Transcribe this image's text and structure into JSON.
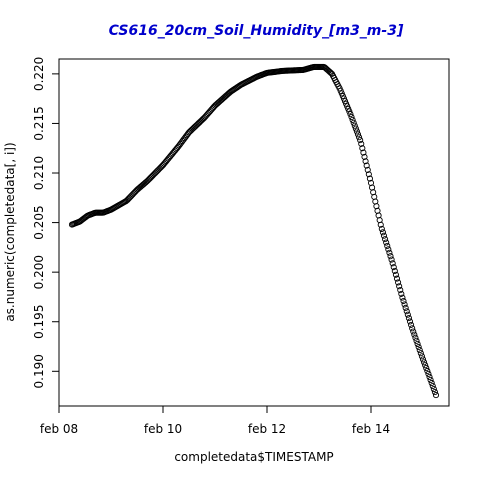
{
  "chart_data": {
    "type": "scatter",
    "title": "CS616_20cm_Soil_Humidity_[m3_m-3]",
    "title_color": "#0000cc",
    "xlabel": "completedata$TIMESTAMP",
    "ylabel": "as.numeric(completedata[, i])",
    "x_unit": "days (Feb, day-of-month)",
    "xlim": [
      8.0,
      15.5
    ],
    "ylim": [
      0.1865,
      0.2215
    ],
    "x_ticks": [
      {
        "value": 8,
        "label": "feb 08"
      },
      {
        "value": 10,
        "label": "feb 10"
      },
      {
        "value": 12,
        "label": "feb 12"
      },
      {
        "value": 14,
        "label": "feb 14"
      }
    ],
    "y_ticks": [
      {
        "value": 0.19,
        "label": "0.190"
      },
      {
        "value": 0.195,
        "label": "0.195"
      },
      {
        "value": 0.2,
        "label": "0.200"
      },
      {
        "value": 0.205,
        "label": "0.205"
      },
      {
        "value": 0.21,
        "label": "0.210"
      },
      {
        "value": 0.215,
        "label": "0.215"
      },
      {
        "value": 0.22,
        "label": "0.220"
      }
    ],
    "point_style": "open-circle",
    "point_color": "#000000",
    "points_per_day": 48,
    "x_range": [
      8.25,
      15.25
    ],
    "trend_keypoints": [
      [
        8.25,
        0.2048
      ],
      [
        8.4,
        0.2051
      ],
      [
        8.55,
        0.2057
      ],
      [
        8.7,
        0.206
      ],
      [
        8.85,
        0.206
      ],
      [
        9.0,
        0.2063
      ],
      [
        9.3,
        0.2072
      ],
      [
        9.5,
        0.2083
      ],
      [
        9.7,
        0.2092
      ],
      [
        10.0,
        0.2108
      ],
      [
        10.3,
        0.2127
      ],
      [
        10.5,
        0.2141
      ],
      [
        10.8,
        0.2156
      ],
      [
        11.0,
        0.2168
      ],
      [
        11.3,
        0.2182
      ],
      [
        11.5,
        0.2189
      ],
      [
        11.8,
        0.2197
      ],
      [
        12.0,
        0.2201
      ],
      [
        12.3,
        0.2203
      ],
      [
        12.7,
        0.2204
      ],
      [
        12.9,
        0.2207
      ],
      [
        13.1,
        0.2207
      ],
      [
        13.25,
        0.22
      ],
      [
        13.4,
        0.2185
      ],
      [
        13.6,
        0.216
      ],
      [
        13.8,
        0.2132
      ],
      [
        14.0,
        0.209
      ],
      [
        14.2,
        0.2045
      ],
      [
        14.4,
        0.2012
      ],
      [
        14.6,
        0.1975
      ],
      [
        14.8,
        0.1942
      ],
      [
        15.0,
        0.1912
      ],
      [
        15.1,
        0.1898
      ],
      [
        15.25,
        0.1876
      ]
    ]
  }
}
